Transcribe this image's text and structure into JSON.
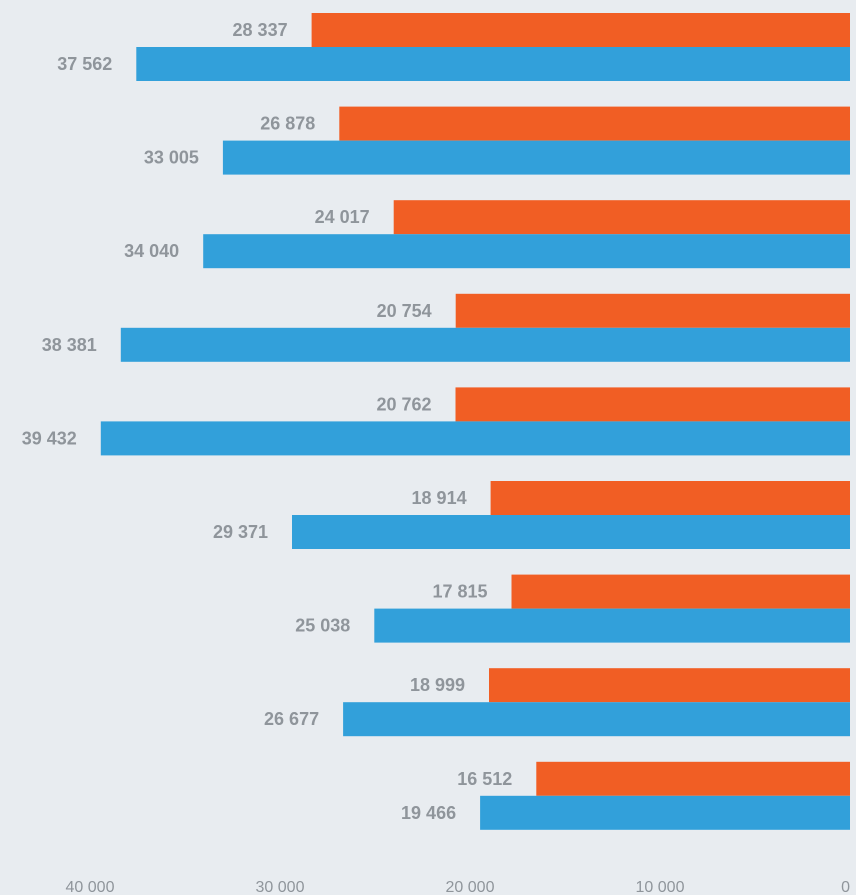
{
  "chart_data": {
    "type": "bar",
    "orientation": "horizontal",
    "x_direction": "reversed",
    "xlim": [
      0,
      40000
    ],
    "grid": false,
    "legend": "none",
    "colors": {
      "background": "#e8ecf0",
      "series_a": "#f15e24",
      "series_b": "#32a0da",
      "label": "#8f959b"
    },
    "x_ticks": [
      {
        "value": 40000,
        "label": "40 000"
      },
      {
        "value": 30000,
        "label": "30 000"
      },
      {
        "value": 20000,
        "label": "20 000"
      },
      {
        "value": 10000,
        "label": "10 000"
      },
      {
        "value": 0,
        "label": "0"
      }
    ],
    "series": [
      {
        "color": "#f15e24",
        "values": [
          28337,
          26878,
          24017,
          20754,
          20762,
          18914,
          17815,
          18999,
          16512
        ],
        "labels": [
          "28 337",
          "26 878",
          "24 017",
          "20 754",
          "20 762",
          "18 914",
          "17 815",
          "18 999",
          "16 512"
        ]
      },
      {
        "color": "#32a0da",
        "values": [
          37562,
          33005,
          34040,
          38381,
          39432,
          29371,
          25038,
          26677,
          19466
        ],
        "labels": [
          "37 562",
          "33 005",
          "34 040",
          "38 381",
          "39 432",
          "29 371",
          "25 038",
          "26 677",
          "19 466"
        ]
      }
    ]
  }
}
